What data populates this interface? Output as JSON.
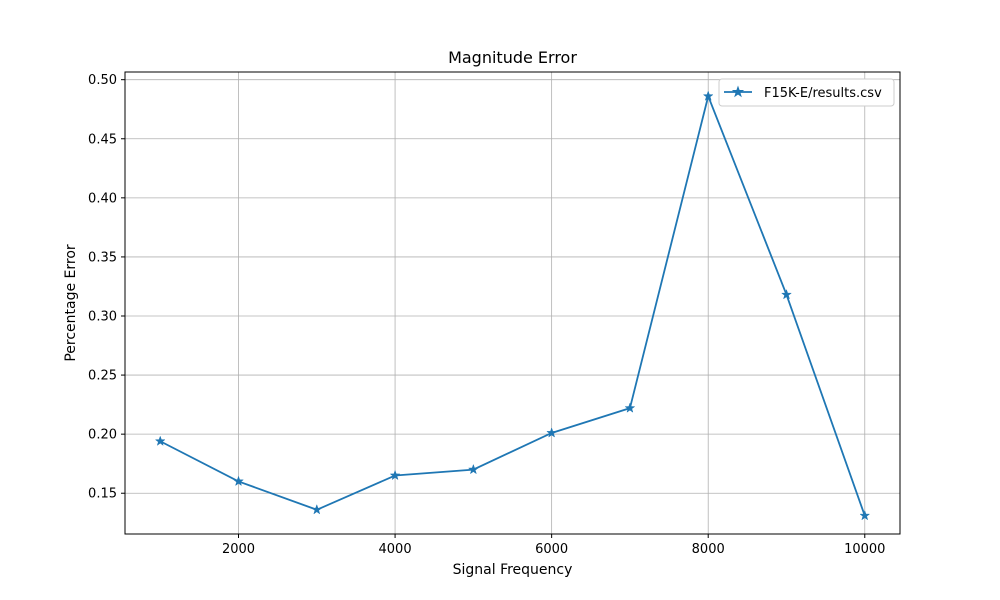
{
  "chart_data": {
    "type": "line",
    "title": "Magnitude Error",
    "xlabel": "Signal Frequency",
    "ylabel": "Percentage Error",
    "xlim": [
      550,
      10450
    ],
    "ylim": [
      0.1155,
      0.5065
    ],
    "xticks": [
      2000,
      4000,
      6000,
      8000,
      10000
    ],
    "yticks": [
      0.15,
      0.2,
      0.25,
      0.3,
      0.35,
      0.4,
      0.45,
      0.5
    ],
    "grid": true,
    "legend_position": "top-right",
    "series": [
      {
        "name": "F15K-E/results.csv",
        "color": "#1f77b4",
        "marker": "star",
        "x": [
          1000,
          2000,
          3000,
          4000,
          5000,
          6000,
          7000,
          8000,
          9000,
          10000
        ],
        "y": [
          0.194,
          0.16,
          0.136,
          0.165,
          0.17,
          0.201,
          0.222,
          0.486,
          0.318,
          0.131
        ]
      }
    ]
  }
}
